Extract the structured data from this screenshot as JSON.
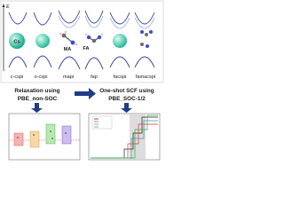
{
  "energy_axis_label": "E",
  "atoms": [
    "Cs",
    "MA",
    "FA"
  ],
  "structures": [
    "c-cspi",
    "o-cspi",
    "mapi",
    "fap",
    "facspi",
    "famacspi"
  ],
  "steps": {
    "relaxation": [
      "Relaxation using",
      "PBE_non-SOC"
    ],
    "scf": [
      "One-shot SCF using",
      "PBE_SOC-1/2"
    ]
  }
}
